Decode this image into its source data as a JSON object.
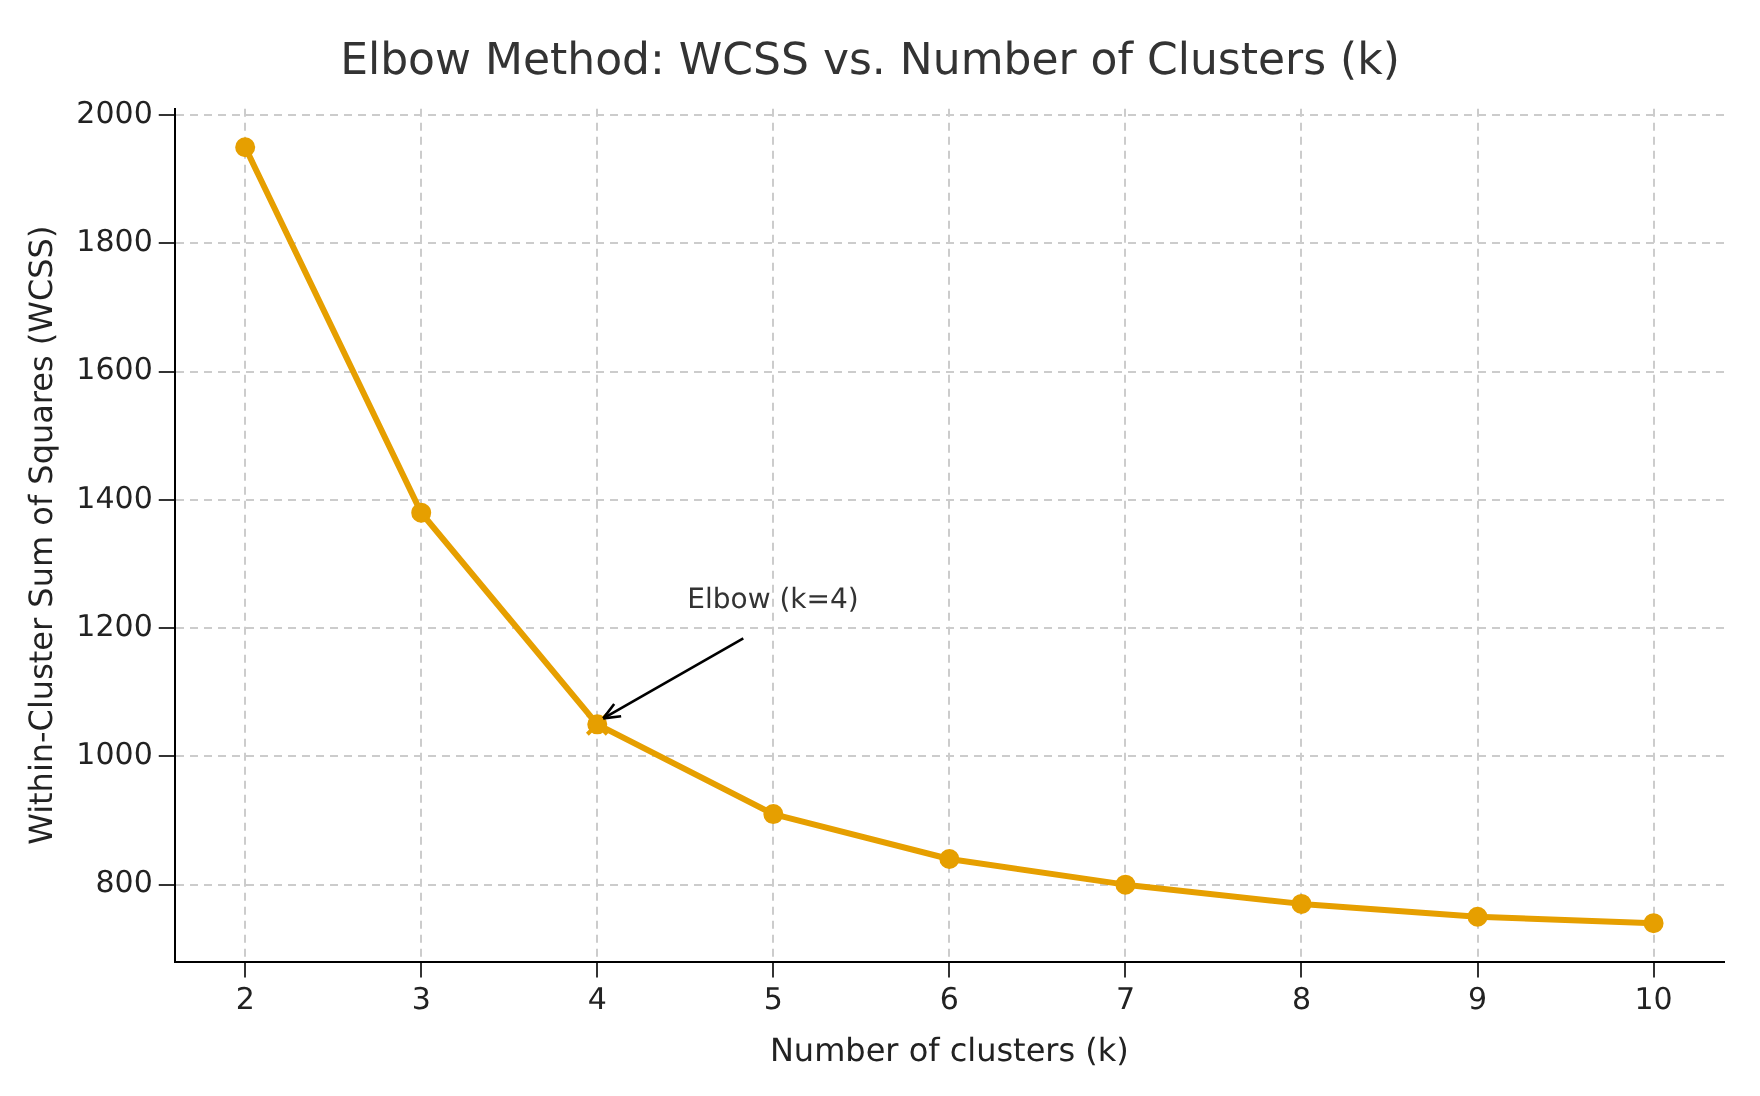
{
  "chart_data": {
    "type": "line",
    "title": "Elbow Method: WCSS vs. Number of Clusters (k)",
    "xlabel": "Number of clusters (k)",
    "ylabel": "Within-Cluster Sum of Squares (WCSS)",
    "x": [
      2,
      3,
      4,
      5,
      6,
      7,
      8,
      9,
      10
    ],
    "series": [
      {
        "color": "#e69f00",
        "values": [
          1950,
          1380,
          1050,
          910,
          840,
          800,
          770,
          750,
          740
        ],
        "marker": "circle"
      },
      {
        "type": "scatter",
        "color": "#e69f00",
        "x": [
          4
        ],
        "values": [
          1050
        ],
        "marker": "cross"
      }
    ],
    "xlim": [
      1.6,
      10.4
    ],
    "xticks": [
      2,
      3,
      4,
      5,
      6,
      7,
      8,
      9,
      10
    ],
    "ylim": [
      680,
      2010
    ],
    "yticks": [
      800,
      1000,
      1200,
      1400,
      1600,
      1800,
      2000
    ],
    "grid": true,
    "legend": false,
    "annotations": [
      {
        "text": "Elbow (k=4)",
        "x": 4,
        "y": 1050
      }
    ]
  }
}
